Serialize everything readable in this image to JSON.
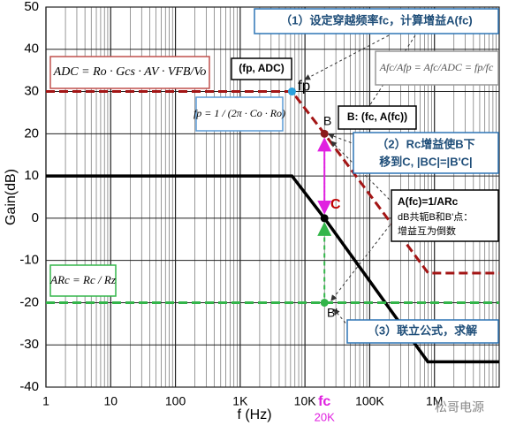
{
  "chart_data": {
    "type": "line",
    "x_label": "f (Hz)",
    "y_label": "Gain(dB)",
    "xlim": [
      1,
      10000000
    ],
    "xticks": [
      1,
      10,
      100,
      {
        "value": 1000,
        "label": "1K"
      },
      {
        "value": 10000,
        "label": "10K"
      },
      {
        "value": 100000,
        "label": "100K"
      },
      {
        "value": 1000000,
        "label": "1M"
      }
    ],
    "ylim": [
      -40,
      50
    ],
    "yticks": [
      -40,
      -30,
      -20,
      -10,
      0,
      10,
      20,
      30,
      40,
      50
    ],
    "x_log": true,
    "grid": true,
    "minor_grid": true,
    "series": [
      {
        "color": "#000000",
        "dash": false,
        "x": [
          1,
          6300,
          20000,
          790000,
          10000000
        ],
        "values": [
          10,
          10,
          0,
          -34,
          -34
        ]
      },
      {
        "color": "#a31515",
        "dash": true,
        "x": [
          1,
          6300,
          20000,
          800000,
          10000000
        ],
        "values": [
          30,
          30,
          20,
          -13,
          -13
        ]
      },
      {
        "color": "#33b54a",
        "dash": true,
        "x": [
          1,
          10000000
        ],
        "values": [
          -20,
          -20
        ]
      }
    ],
    "points": {
      "x": [
        6300,
        20000,
        20000,
        20000
      ],
      "values": [
        30,
        20,
        0,
        -20
      ],
      "colors": [
        "#2aa0dc",
        "#8b1a1a",
        "#000000",
        "#33b54a"
      ]
    },
    "fc_label": "fc",
    "fc_value_label": "20K",
    "annotations": [
      "（1）设定穿越频率fc，计算增益A(fc)",
      "(fp, ADC)",
      "fp",
      "B: (fc, A(fc))",
      "B",
      "（2）Rc增益使B下",
      "移到C, |BC|=|B'C|",
      "C",
      "A(fc)=1/ARc",
      "dB共轭B和B'点：",
      "增益互为倒数",
      "B'",
      "（3）联立公式，求解",
      "松哥电源"
    ],
    "formulas": [
      "ADC = Ro · Gcs · AV · VFB/Vo",
      "fp = 1 / (2π · Co · Ro)",
      "ARc = Rc / Rz",
      "Afc/Afp = Afc/ADC = fp/fc"
    ]
  }
}
